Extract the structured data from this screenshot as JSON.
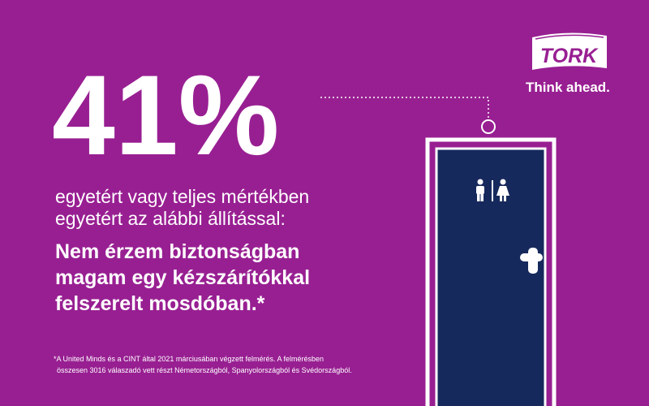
{
  "stat": "41%",
  "subtitle": [
    "egyetért vagy teljes mértékben",
    "egyetért az alábbi állítással:"
  ],
  "statement": [
    "Nem érzem biztonságban",
    "magam egy kézszárítókkal",
    "felszerelt mosdóban.*"
  ],
  "footnote": [
    "*A United Minds és a CINT által 2021 márciusában végzett felmérés. A felmérésben",
    "összesen 3016 válaszadó vett részt Németországból, Spanyolországból és Svédországból."
  ],
  "logo": {
    "brand": "TORK",
    "tagline": "Think ahead."
  }
}
